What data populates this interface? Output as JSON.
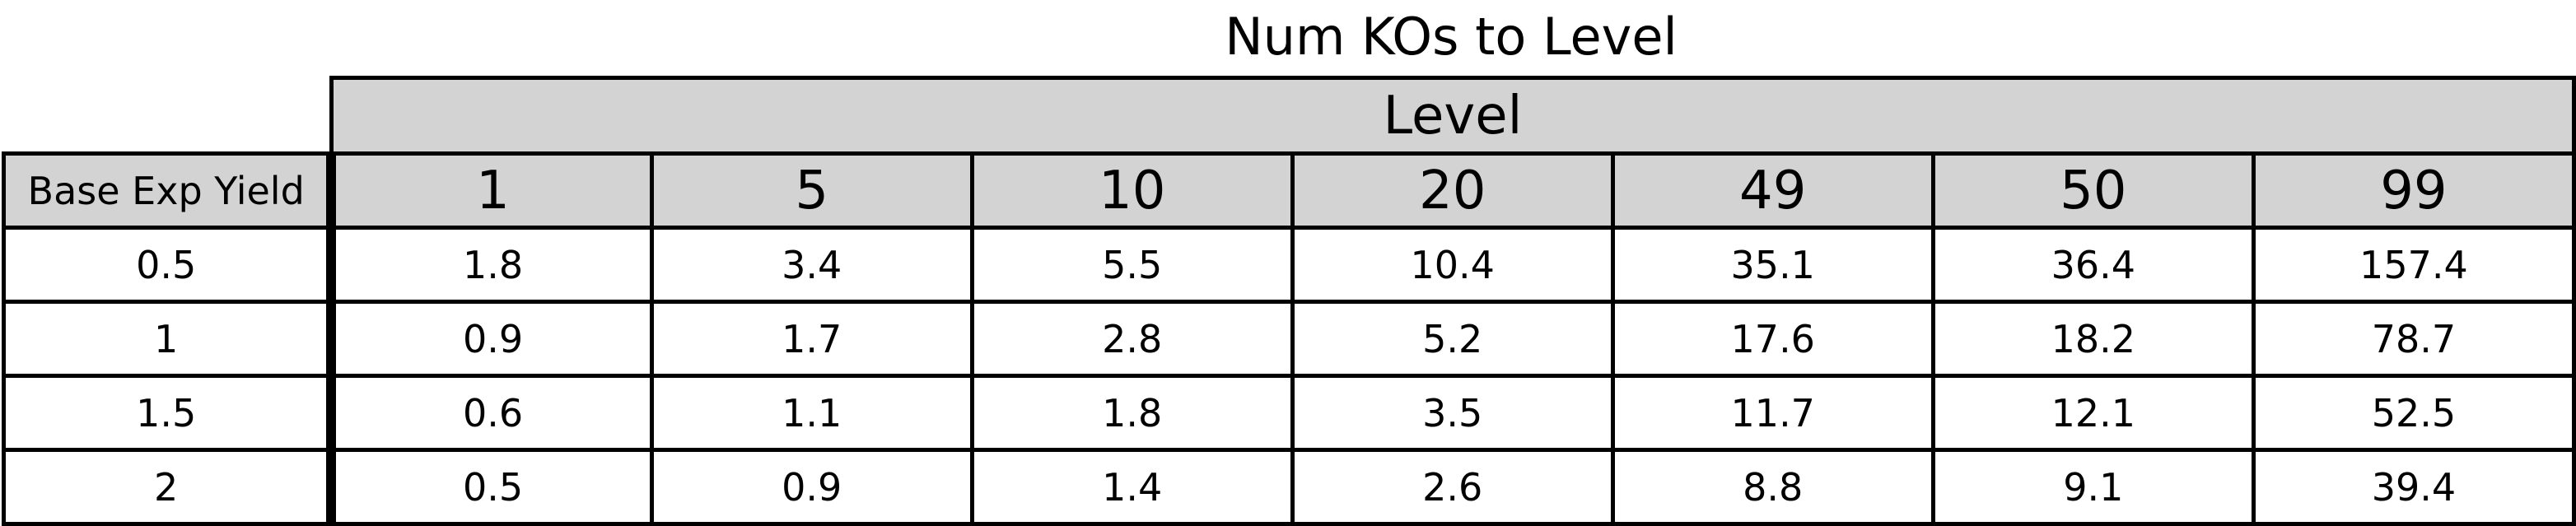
{
  "chart_data": {
    "type": "table",
    "title": "Num KOs to Level",
    "column_group_label": "Level",
    "row_header_label": "Base Exp Yield",
    "columns": [
      "1",
      "5",
      "10",
      "20",
      "49",
      "50",
      "99"
    ],
    "rows": [
      {
        "label": "0.5",
        "values": [
          "1.8",
          "3.4",
          "5.5",
          "10.4",
          "35.1",
          "36.4",
          "157.4"
        ]
      },
      {
        "label": "1",
        "values": [
          "0.9",
          "1.7",
          "2.8",
          "5.2",
          "17.6",
          "18.2",
          "78.7"
        ]
      },
      {
        "label": "1.5",
        "values": [
          "0.6",
          "1.1",
          "1.8",
          "3.5",
          "11.7",
          "12.1",
          "52.5"
        ]
      },
      {
        "label": "2",
        "values": [
          "0.5",
          "0.9",
          "1.4",
          "2.6",
          "8.8",
          "9.1",
          "39.4"
        ]
      }
    ],
    "colors": {
      "header_background": "#d3d3d3",
      "cell_background": "#ffffff",
      "border": "#000000"
    }
  }
}
